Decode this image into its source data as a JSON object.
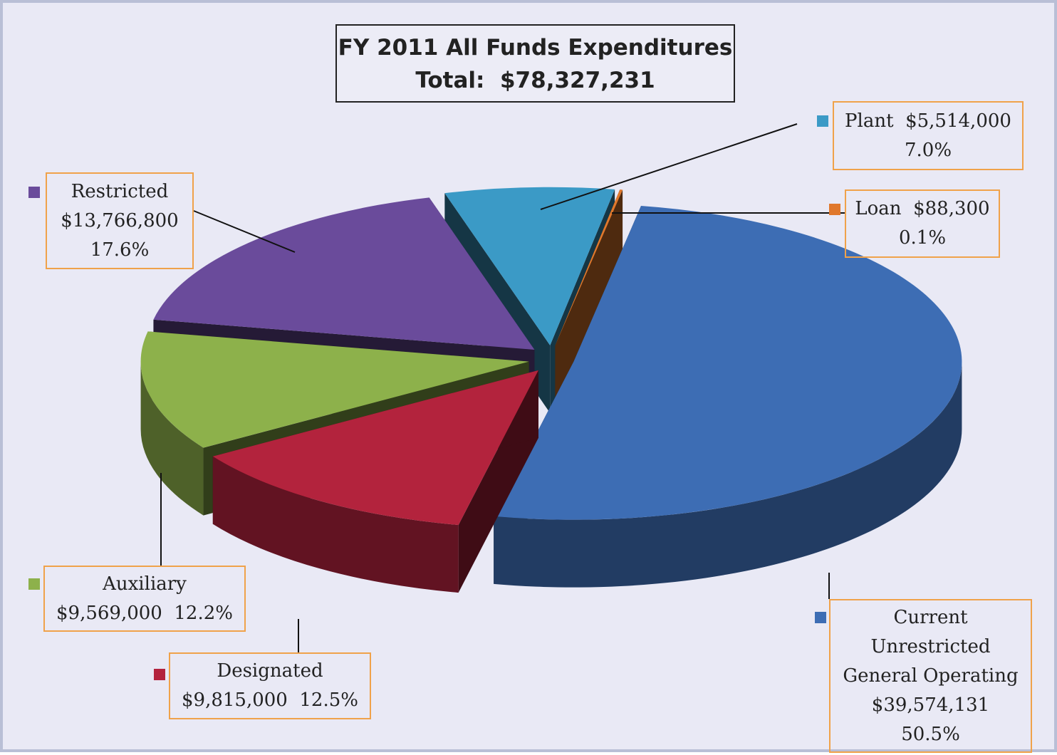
{
  "chart_data": {
    "type": "pie",
    "title": "FY 2011 All Funds Expenditures",
    "subtitle": "Total:  $78,327,231",
    "categories": [
      "Current\nUnrestricted\nGeneral Operating",
      "Designated",
      "Auxiliary",
      "Restricted",
      "Plant",
      "Loan"
    ],
    "values": [
      39574131,
      9815000,
      9569000,
      13766800,
      5514000,
      88300
    ],
    "value_labels": [
      "$39,574,131",
      "$9,815,000",
      "$9,569,000",
      "$13,766,800",
      "$5,514,000",
      "$88,300"
    ],
    "percents": [
      50.5,
      12.5,
      12.2,
      17.6,
      7.0,
      0.1
    ],
    "percent_labels": [
      "50.5%",
      "12.5%",
      "12.2%",
      "17.6%",
      "7.0%",
      "0.1%"
    ],
    "colors": [
      "#3d6db4",
      "#b3233d",
      "#8db14b",
      "#6a4b9b",
      "#3b9ac6",
      "#e0782c"
    ]
  }
}
